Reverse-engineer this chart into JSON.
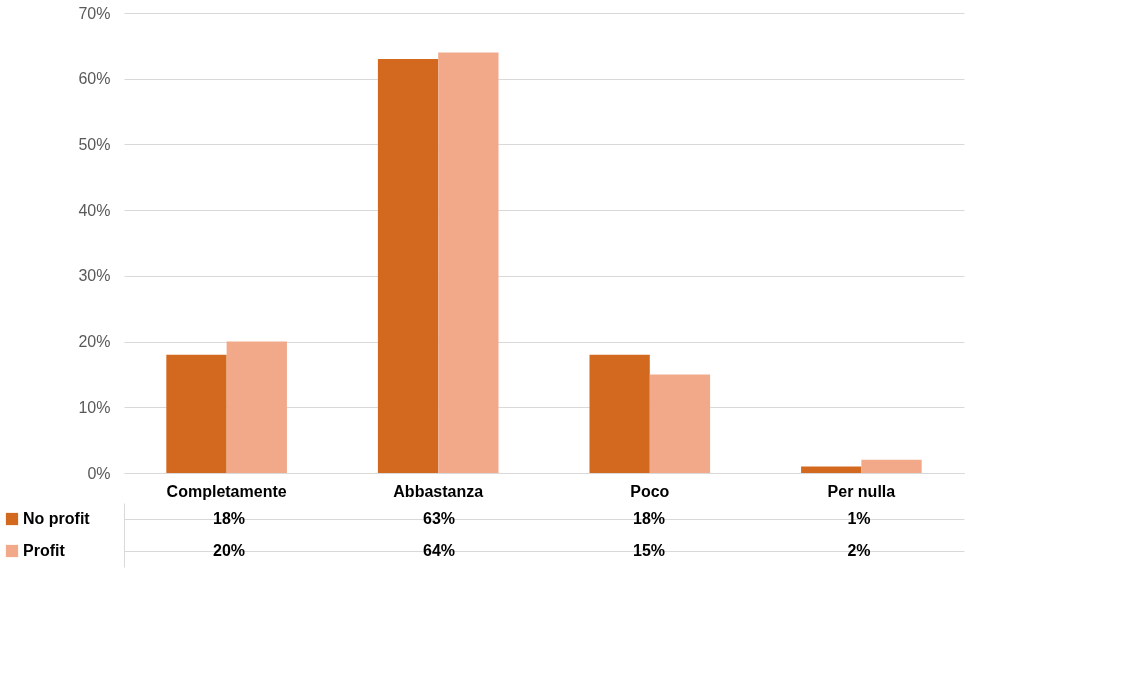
{
  "chart_data": {
    "type": "bar",
    "categories": [
      "Completamente",
      "Abbastanza",
      "Poco",
      "Per nulla"
    ],
    "series": [
      {
        "name": "No profit",
        "color": "#d2691e",
        "values": [
          18,
          63,
          18,
          1
        ],
        "value_labels": [
          "18%",
          "63%",
          "18%",
          "1%"
        ]
      },
      {
        "name": "Profit",
        "color": "#f2a98a",
        "values": [
          20,
          64,
          15,
          2
        ],
        "value_labels": [
          "20%",
          "64%",
          "15%",
          "2%"
        ]
      }
    ],
    "ylim": [
      0,
      70
    ],
    "yticks": [
      {
        "value": 0,
        "label": "0%"
      },
      {
        "value": 10,
        "label": "10%"
      },
      {
        "value": 20,
        "label": "20%"
      },
      {
        "value": 30,
        "label": "30%"
      },
      {
        "value": 40,
        "label": "40%"
      },
      {
        "value": 50,
        "label": "50%"
      },
      {
        "value": 60,
        "label": "60%"
      },
      {
        "value": 70,
        "label": "70%"
      }
    ],
    "grid": "y",
    "legend": "bottom"
  }
}
